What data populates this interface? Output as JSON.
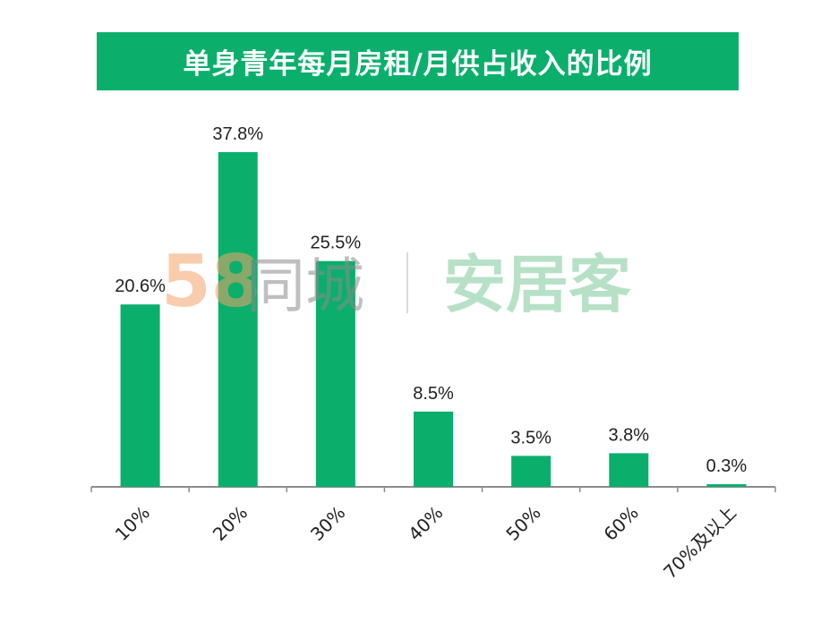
{
  "chart_data": {
    "type": "bar",
    "title": "单身青年每月房租/月供占收入的比例",
    "categories": [
      "10%",
      "20%",
      "30%",
      "40%",
      "50%",
      "60%",
      "70%及以上"
    ],
    "values": [
      20.6,
      37.8,
      25.5,
      8.5,
      3.5,
      3.8,
      0.3
    ],
    "value_labels": [
      "20.6%",
      "37.8%",
      "25.5%",
      "8.5%",
      "3.5%",
      "3.8%",
      "0.3%"
    ],
    "xlabel": "",
    "ylabel": "",
    "ylim": [
      0,
      40
    ],
    "grid": false,
    "bar_color": "#0aaf6c",
    "title_bg_color": "#0aaf6c"
  },
  "watermark": {
    "brand_number": "58",
    "brand_city": "同城",
    "brand_anjuke": "安居客"
  }
}
